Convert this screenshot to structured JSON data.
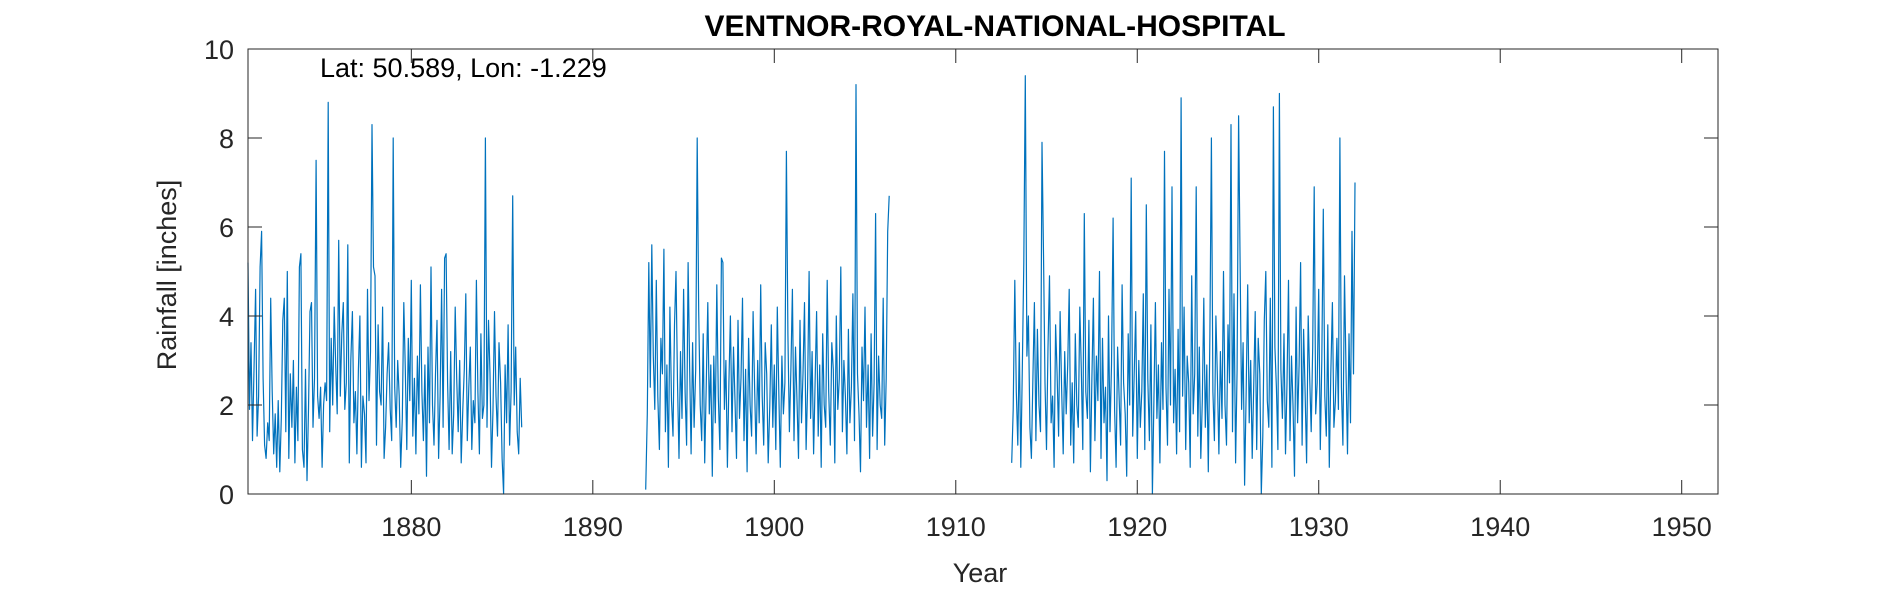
{
  "chart_data": {
    "type": "line",
    "title": "VENTNOR-ROYAL-NATIONAL-HOSPITAL",
    "annotation": "Lat: 50.589, Lon: -1.229",
    "xlabel": "Year",
    "ylabel": "Rainfall [inches]",
    "xlim": [
      1871,
      1952
    ],
    "ylim": [
      0,
      10
    ],
    "xticks": [
      1880,
      1890,
      1900,
      1910,
      1920,
      1930,
      1940,
      1950
    ],
    "xtick_labels": [
      "1880",
      "1890",
      "1900",
      "1910",
      "1920",
      "1930",
      "1940",
      "1950"
    ],
    "yticks": [
      0,
      2,
      4,
      6,
      8,
      10
    ],
    "ytick_labels": [
      "0",
      "2",
      "4",
      "6",
      "8",
      "10"
    ],
    "grid": false,
    "line_color": "#0072BD",
    "series": [
      {
        "start_year": 1871,
        "start_month": 1,
        "values": [
          5.2,
          1.9,
          3.4,
          1.2,
          2.8,
          4.6,
          1.3,
          2.2,
          5.1,
          5.9,
          2.6,
          1.1,
          0.8,
          1.6,
          1.2,
          4.4,
          2.3,
          0.9,
          1.8,
          0.6,
          2.1,
          0.5,
          1.7,
          3.9,
          4.4,
          1.4,
          5.0,
          0.8,
          2.7,
          1.5,
          3.0,
          0.7,
          2.4,
          1.2,
          5.1,
          5.4,
          1.0,
          0.6,
          2.8,
          0.3,
          1.9,
          4.1,
          4.3,
          1.5,
          2.6,
          7.5,
          2.2,
          1.7,
          2.4,
          0.6,
          2.0,
          2.5,
          2.1,
          8.8,
          1.4,
          3.5,
          2.0,
          4.2,
          2.9,
          1.8,
          5.7,
          2.2,
          3.6,
          4.3,
          1.9,
          2.5,
          5.6,
          0.7,
          3.0,
          4.1,
          1.6,
          2.3,
          0.9,
          2.8,
          4.0,
          0.6,
          2.2,
          1.8,
          0.7,
          4.6,
          2.1,
          3.2,
          8.3,
          5.1,
          4.9,
          1.1,
          3.8,
          2.3,
          2.0,
          4.2,
          0.8,
          1.5,
          2.7,
          3.4,
          1.9,
          1.2,
          8.0,
          2.4,
          1.5,
          3.0,
          2.2,
          0.6,
          1.7,
          4.3,
          2.8,
          1.0,
          3.5,
          2.1,
          4.8,
          1.3,
          2.6,
          0.9,
          3.1,
          1.8,
          4.7,
          2.3,
          1.2,
          2.9,
          0.4,
          3.3,
          1.6,
          5.1,
          2.0,
          1.1,
          2.7,
          3.9,
          0.8,
          2.2,
          4.6,
          1.5,
          5.3,
          5.4,
          2.5,
          1.0,
          3.2,
          0.9,
          1.8,
          4.2,
          2.6,
          1.4,
          3.0,
          0.7,
          1.9,
          2.8,
          4.5,
          1.2,
          2.4,
          3.3,
          1.0,
          2.1,
          1.6,
          4.8,
          2.3,
          0.9,
          3.6,
          1.7,
          2.0,
          8.0,
          1.5,
          3.9,
          2.7,
          0.6,
          1.9,
          4.1,
          2.2,
          1.3,
          3.4,
          2.5,
          0.8,
          0.0,
          2.9,
          1.6,
          3.8,
          1.1,
          2.3,
          6.7,
          2.0,
          3.3,
          1.4,
          0.9,
          2.6,
          1.5
        ]
      },
      {
        "start_year": 1892,
        "start_month": 12,
        "values": [
          0.1,
          1.8,
          5.2,
          2.4,
          5.6,
          3.1,
          1.9,
          4.8,
          2.2,
          1.0,
          3.5,
          2.7,
          5.5,
          1.4,
          2.9,
          0.6,
          4.2,
          2.1,
          1.3,
          3.8,
          5.0,
          2.5,
          0.8,
          3.2,
          1.7,
          4.6,
          2.3,
          1.1,
          5.2,
          2.9,
          0.9,
          3.4,
          1.5,
          2.8,
          8.0,
          4.1,
          2.0,
          1.2,
          3.6,
          0.7,
          2.4,
          4.3,
          1.8,
          2.9,
          0.4,
          3.1,
          1.6,
          4.7,
          2.2,
          1.0,
          5.3,
          5.2,
          1.9,
          3.0,
          0.6,
          2.5,
          4.0,
          1.4,
          3.3,
          2.1,
          0.8,
          3.9,
          1.7,
          2.6,
          4.4,
          1.2,
          2.8,
          0.5,
          3.5,
          2.0,
          1.3,
          4.1,
          2.4,
          0.9,
          3.0,
          1.6,
          4.7,
          2.2,
          1.1,
          3.4,
          2.7,
          0.7,
          2.0,
          3.8,
          1.5,
          2.9,
          1.0,
          4.2,
          2.3,
          0.6,
          3.1,
          1.8,
          2.5,
          7.7,
          3.6,
          1.4,
          2.8,
          4.6,
          1.2,
          3.3,
          2.1,
          0.8,
          3.9,
          1.6,
          2.7,
          4.3,
          1.0,
          2.4,
          5.0,
          1.7,
          3.2,
          0.9,
          2.5,
          4.1,
          1.3,
          2.9,
          0.6,
          3.6,
          2.0,
          1.5,
          4.8,
          2.3,
          1.1,
          3.4,
          2.8,
          0.7,
          4.0,
          1.9,
          2.6,
          5.1,
          1.4,
          3.0,
          2.2,
          0.9,
          3.7,
          1.6,
          2.4,
          4.5,
          1.2,
          9.2,
          2.7,
          1.8,
          0.5,
          3.3,
          2.1,
          4.2,
          1.5,
          2.9,
          0.8,
          3.6,
          1.3,
          2.5,
          6.3,
          1.0,
          3.1,
          2.0,
          1.7,
          4.4,
          1.1,
          2.6,
          5.9,
          6.7
        ]
      },
      {
        "start_year": 1913,
        "start_month": 2,
        "values": [
          0.7,
          1.9,
          4.8,
          2.3,
          1.1,
          3.4,
          0.6,
          2.8,
          5.2,
          9.4,
          3.1,
          4.0,
          1.5,
          0.8,
          2.6,
          4.3,
          1.2,
          3.7,
          2.0,
          1.4,
          7.9,
          5.4,
          2.5,
          1.0,
          3.3,
          4.9,
          1.6,
          2.2,
          0.6,
          3.8,
          2.7,
          1.3,
          4.1,
          2.4,
          0.9,
          3.2,
          1.8,
          2.9,
          4.6,
          1.1,
          2.5,
          0.7,
          3.6,
          2.0,
          1.5,
          4.2,
          2.8,
          1.0,
          6.3,
          2.3,
          1.7,
          3.9,
          0.5,
          2.6,
          4.4,
          1.2,
          3.1,
          2.1,
          5.0,
          0.8,
          3.5,
          1.6,
          2.4,
          0.3,
          4.0,
          1.4,
          2.9,
          6.2,
          1.9,
          0.6,
          3.3,
          2.2,
          1.1,
          4.7,
          2.5,
          1.8,
          0.4,
          3.6,
          2.0,
          7.1,
          1.3,
          2.7,
          4.1,
          0.8,
          3.0,
          1.5,
          2.3,
          4.5,
          1.0,
          6.5,
          2.6,
          1.2,
          3.8,
          0.0,
          2.1,
          4.3,
          1.7,
          2.9,
          0.7,
          3.4,
          1.9,
          7.7,
          2.4,
          1.1,
          4.6,
          2.0,
          6.9,
          1.6,
          2.8,
          0.9,
          3.7,
          1.4,
          8.9,
          2.2,
          4.2,
          1.0,
          3.1,
          2.5,
          0.6,
          4.9,
          1.8,
          2.7,
          6.9,
          1.3,
          3.3,
          0.8,
          2.1,
          4.4,
          1.5,
          2.9,
          0.5,
          3.6,
          8.0,
          2.3,
          1.2,
          4.0,
          2.6,
          0.9,
          3.2,
          1.7,
          5.0,
          2.0,
          1.1,
          3.8,
          2.5,
          8.3,
          1.4,
          4.5,
          0.7,
          2.8,
          8.5,
          5.2,
          1.9,
          3.4,
          0.2,
          2.2,
          4.7,
          1.6,
          3.0,
          0.8,
          2.4,
          4.1,
          1.0,
          3.5,
          2.7,
          0.0,
          1.3,
          3.9,
          5.0,
          2.1,
          1.5,
          4.4,
          0.6,
          8.7,
          3.3,
          2.4,
          1.0,
          9.0,
          2.8,
          1.7,
          3.6,
          0.9,
          2.5,
          4.8,
          1.2,
          3.1,
          2.0,
          0.4,
          4.2,
          1.6,
          2.9,
          5.2,
          1.1,
          3.7,
          2.3,
          0.7,
          4.0,
          2.6,
          1.4,
          3.3,
          6.9,
          1.8,
          2.5,
          4.6,
          1.0,
          3.0,
          6.4,
          2.2,
          1.3,
          3.8,
          0.6,
          2.7,
          4.3,
          1.5,
          2.1,
          3.5,
          1.9,
          8.0,
          2.4,
          1.1,
          4.9,
          2.8,
          0.9,
          3.6,
          1.6,
          5.9,
          2.7,
          7.0
        ]
      }
    ]
  }
}
